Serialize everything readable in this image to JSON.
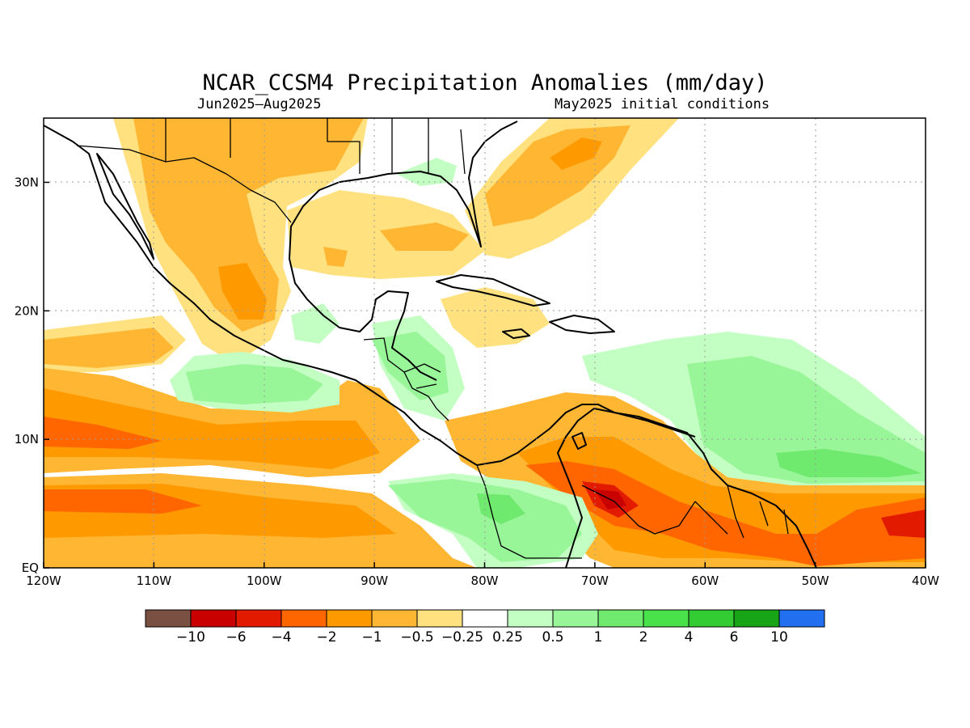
{
  "title": "NCAR_CCSM4 Precipitation Anomalies (mm/day)",
  "period": "Jun2025–Aug2025",
  "initial_conditions": "May2025 initial conditions",
  "map": {
    "lon_range": [
      -120,
      -40
    ],
    "lat_range": [
      0,
      35
    ],
    "x_ticks": [
      {
        "lon": -120,
        "label": "120W"
      },
      {
        "lon": -110,
        "label": "110W"
      },
      {
        "lon": -100,
        "label": "100W"
      },
      {
        "lon": -90,
        "label": "90W"
      },
      {
        "lon": -80,
        "label": "80W"
      },
      {
        "lon": -70,
        "label": "70W"
      },
      {
        "lon": -60,
        "label": "60W"
      },
      {
        "lon": -50,
        "label": "50W"
      },
      {
        "lon": -40,
        "label": "40W"
      }
    ],
    "y_ticks": [
      {
        "lat": 0,
        "label": "EQ"
      },
      {
        "lat": 10,
        "label": "10N"
      },
      {
        "lat": 20,
        "label": "20N"
      },
      {
        "lat": 30,
        "label": "30N"
      }
    ],
    "grid": "dotted"
  },
  "colorbar": {
    "colors": [
      "#7a5042",
      "#c80000",
      "#e21a00",
      "#ff6600",
      "#ff9900",
      "#ffb733",
      "#ffe17f",
      "#ffffff",
      "#c3ffc3",
      "#98f598",
      "#6fea6f",
      "#4ae24a",
      "#33cc33",
      "#17a517",
      "#2070f0"
    ],
    "labels": [
      "−10",
      "−6",
      "−4",
      "−2",
      "−1",
      "−0.5",
      "−0.25",
      "0.25",
      "0.5",
      "1",
      "2",
      "4",
      "6",
      "10"
    ]
  }
}
